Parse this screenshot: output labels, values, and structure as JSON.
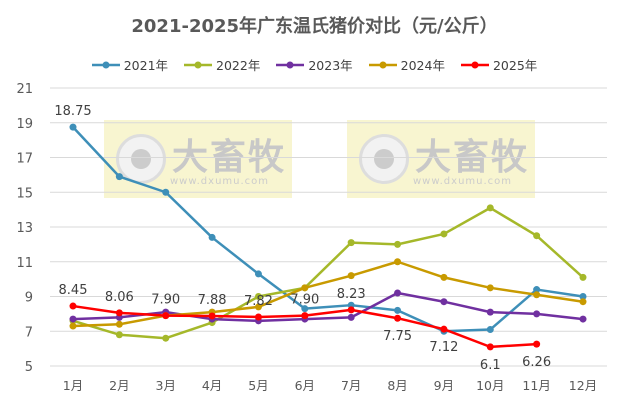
{
  "watermark": {
    "name": "大畜牧",
    "url": "www.dxumu.com"
  },
  "chart_data": {
    "type": "line",
    "title": "2021-2025年广东温氏猪价对比（元/公斤）",
    "categories": [
      "1月",
      "2月",
      "3月",
      "4月",
      "5月",
      "6月",
      "7月",
      "8月",
      "9月",
      "10月",
      "11月",
      "12月"
    ],
    "ylim": [
      5,
      21
    ],
    "yticks": [
      5,
      7,
      9,
      11,
      13,
      15,
      17,
      19,
      21
    ],
    "grid": true,
    "legend": "top",
    "series": [
      {
        "name": "2021年",
        "color": "#3E8FB8",
        "values": [
          18.75,
          15.9,
          15.0,
          12.4,
          10.3,
          8.3,
          8.5,
          8.2,
          7.0,
          7.1,
          9.4,
          9.0
        ]
      },
      {
        "name": "2022年",
        "color": "#A5B82A",
        "values": [
          7.6,
          6.8,
          6.6,
          7.5,
          9.0,
          9.5,
          12.1,
          12.0,
          12.6,
          14.1,
          12.5,
          10.1
        ]
      },
      {
        "name": "2023年",
        "color": "#7030A0",
        "values": [
          7.7,
          7.8,
          8.1,
          7.7,
          7.6,
          7.7,
          7.8,
          9.2,
          8.7,
          8.1,
          8.0,
          7.7
        ]
      },
      {
        "name": "2024年",
        "color": "#C89A00",
        "values": [
          7.3,
          7.4,
          7.9,
          8.1,
          8.4,
          9.5,
          10.2,
          11.0,
          10.1,
          9.5,
          9.1,
          8.7
        ]
      },
      {
        "name": "2025年",
        "color": "#FF0000",
        "values": [
          8.45,
          8.06,
          7.9,
          7.88,
          7.82,
          7.9,
          8.23,
          7.75,
          7.12,
          6.1,
          6.26,
          null
        ]
      }
    ],
    "data_labels": [
      {
        "series": "2021年",
        "index": 0,
        "text": "18.75",
        "pos": "above"
      },
      {
        "series": "2025年",
        "index": 0,
        "text": "8.45",
        "pos": "above"
      },
      {
        "series": "2025年",
        "index": 1,
        "text": "8.06",
        "pos": "above"
      },
      {
        "series": "2025年",
        "index": 2,
        "text": "7.90",
        "pos": "above"
      },
      {
        "series": "2025年",
        "index": 3,
        "text": "7.88",
        "pos": "above"
      },
      {
        "series": "2025年",
        "index": 4,
        "text": "7.82",
        "pos": "above"
      },
      {
        "series": "2025年",
        "index": 5,
        "text": "7.90",
        "pos": "above"
      },
      {
        "series": "2025年",
        "index": 6,
        "text": "8.23",
        "pos": "above"
      },
      {
        "series": "2025年",
        "index": 7,
        "text": "7.75",
        "pos": "below"
      },
      {
        "series": "2025年",
        "index": 8,
        "text": "7.12",
        "pos": "below"
      },
      {
        "series": "2025年",
        "index": 9,
        "text": "6.1",
        "pos": "below"
      },
      {
        "series": "2025年",
        "index": 10,
        "text": "6.26",
        "pos": "below"
      }
    ]
  }
}
